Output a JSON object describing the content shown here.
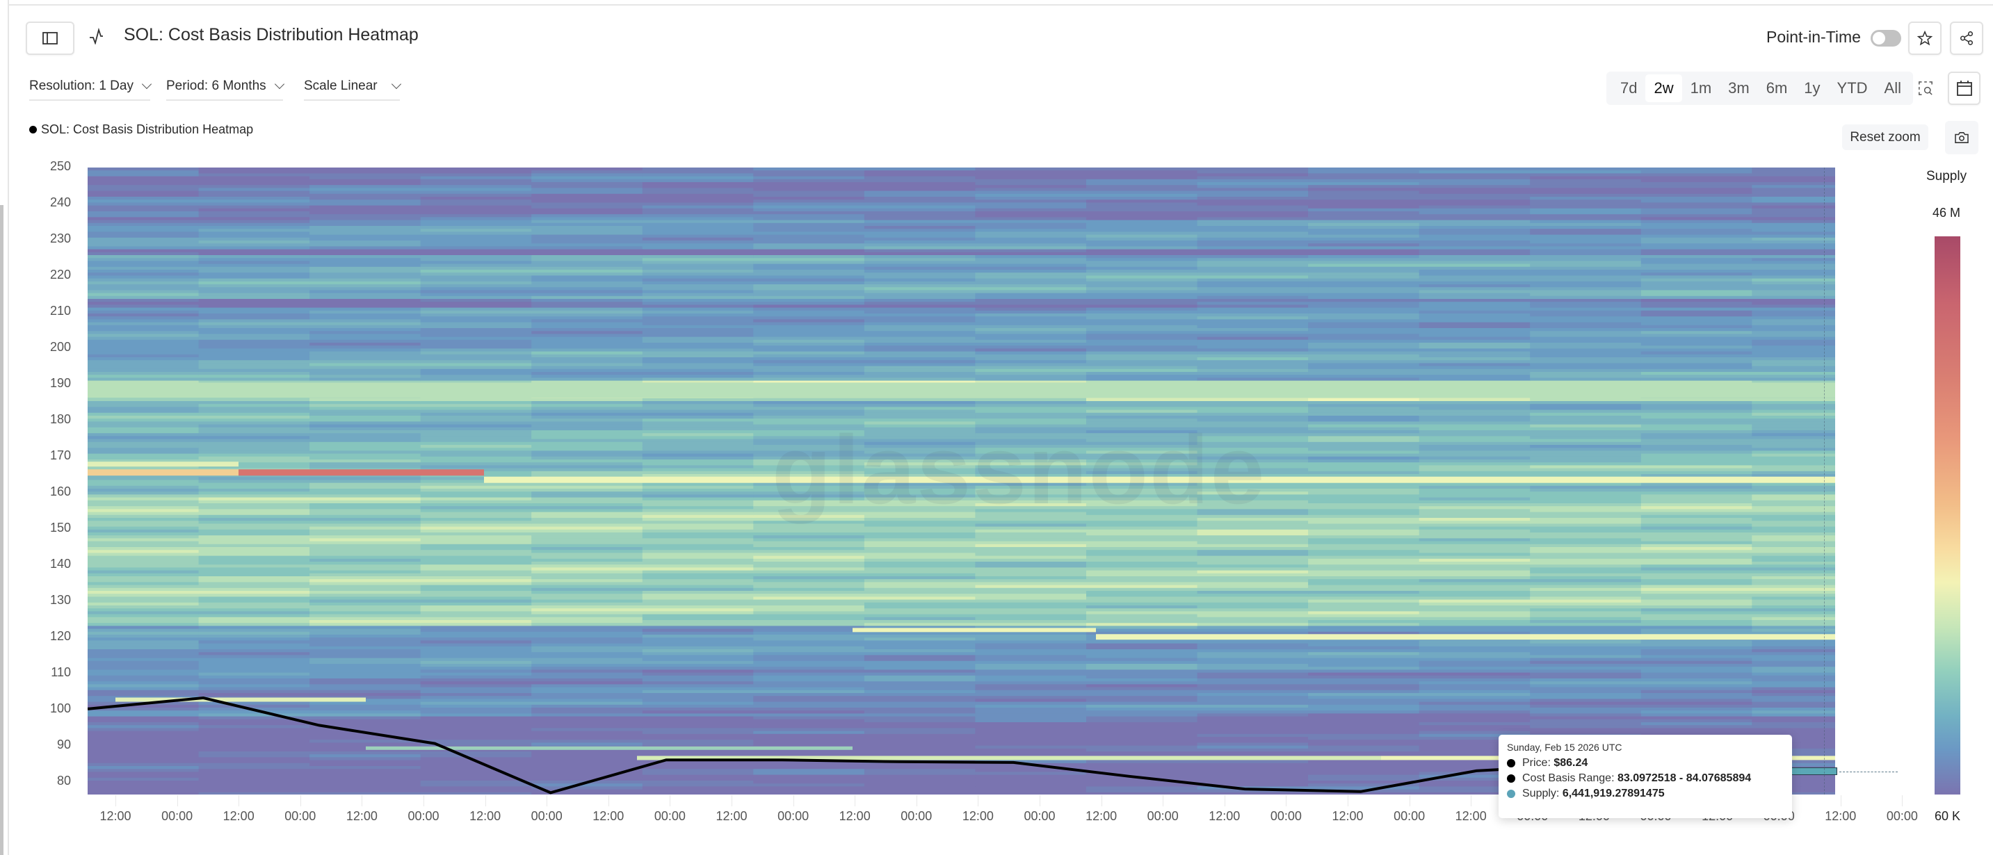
{
  "header": {
    "title": "SOL: Cost Basis Distribution Heatmap",
    "point_in_time_label": "Point-in-Time",
    "point_in_time_enabled": false
  },
  "controls": {
    "resolution": "Resolution: 1 Day",
    "period": "Period: 6 Months",
    "scale": "Scale Linear",
    "ranges": [
      "7d",
      "2w",
      "1m",
      "3m",
      "6m",
      "1y",
      "YTD",
      "All"
    ],
    "active_range": "2w",
    "reset_zoom": "Reset zoom"
  },
  "legend": {
    "series_label": "SOL: Cost Basis Distribution Heatmap"
  },
  "colorbar": {
    "title": "Supply",
    "max_label": "46 M",
    "min_label": "60 K"
  },
  "tooltip": {
    "date": "Sunday, Feb 15 2026 UTC",
    "price_label": "Price: ",
    "price_value": "$86.24",
    "range_label": "Cost Basis Range: ",
    "range_value": "83.0972518 - 84.07685894",
    "supply_label": "Supply: ",
    "supply_value": "6,441,919.27891475",
    "price_color": "#000000",
    "supply_color": "#5ba3b8"
  },
  "watermark": "glassnode",
  "chart_data": {
    "type": "heatmap",
    "title": "SOL: Cost Basis Distribution Heatmap",
    "xlabel": "",
    "ylabel": "",
    "y_ticks": [
      250,
      240,
      230,
      220,
      210,
      200,
      190,
      180,
      170,
      160,
      150,
      140,
      130,
      120,
      110,
      100,
      90,
      80
    ],
    "ylim": [
      78,
      250
    ],
    "x_ticks": [
      "12:00",
      "00:00",
      "12:00",
      "00:00",
      "12:00",
      "00:00",
      "12:00",
      "00:00",
      "12:00",
      "00:00",
      "12:00",
      "00:00",
      "12:00",
      "00:00",
      "12:00",
      "00:00",
      "12:00",
      "00:00",
      "12:00",
      "00:00",
      "12:00",
      "00:00",
      "12:00",
      "00:00",
      "12:00",
      "00:00",
      "12:00",
      "00:00",
      "12:00",
      "00:00"
    ],
    "colorbar": {
      "label": "Supply",
      "min": "60 K",
      "max": "46 M"
    },
    "price_series": {
      "name": "Price",
      "x_day_index": [
        0,
        1,
        2,
        3,
        4,
        5,
        6,
        7,
        8,
        9,
        10,
        11,
        12,
        13,
        14,
        15
      ],
      "values": [
        101.5,
        104.5,
        97,
        92,
        78.5,
        87.5,
        87.5,
        87,
        86.8,
        83,
        79.5,
        78.8,
        84.5,
        86.24,
        86.24,
        86.24
      ]
    },
    "notable_bands": [
      {
        "range": [
          163,
          167
        ],
        "level": "high",
        "note": "peak supply band early in window (red/orange)"
      },
      {
        "range": [
          188,
          192
        ],
        "level": "medium",
        "note": "persistent light green band"
      },
      {
        "range": [
          121,
          124
        ],
        "level": "medium-high",
        "note": "yellow band appearing mid-window"
      },
      {
        "range": [
          83.1,
          84.1
        ],
        "level": "highlighted",
        "supply": 6441919.27891475
      }
    ],
    "hover": {
      "date": "Sunday, Feb 15 2026 UTC",
      "price": 86.24,
      "cost_basis_range": [
        83.0972518,
        84.07685894
      ],
      "supply": 6441919.27891475
    }
  }
}
